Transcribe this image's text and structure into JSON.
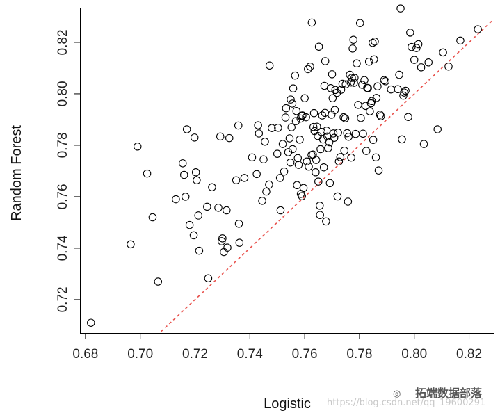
{
  "chart_data": {
    "type": "scatter",
    "xlabel": "Logistic",
    "ylabel": "Random Forest",
    "xlim": [
      0.678,
      0.829
    ],
    "ylim": [
      0.707,
      0.8335
    ],
    "xticks": [
      "0.68",
      "0.70",
      "0.72",
      "0.74",
      "0.76",
      "0.78",
      "0.80",
      "0.82"
    ],
    "yticks": [
      "0.72",
      "0.74",
      "0.76",
      "0.78",
      "0.80",
      "0.82"
    ],
    "reference_line": {
      "slope": 1,
      "intercept": 0,
      "style": "dashed",
      "color": "#e8504b"
    },
    "marker_color": "#000000",
    "points": [
      [
        0.682,
        0.711
      ],
      [
        0.6965,
        0.7415
      ],
      [
        0.699,
        0.7795
      ],
      [
        0.7025,
        0.769
      ],
      [
        0.7045,
        0.752
      ],
      [
        0.7065,
        0.727
      ],
      [
        0.713,
        0.759
      ],
      [
        0.7155,
        0.773
      ],
      [
        0.716,
        0.7685
      ],
      [
        0.7165,
        0.76
      ],
      [
        0.717,
        0.7862
      ],
      [
        0.718,
        0.749
      ],
      [
        0.7195,
        0.745
      ],
      [
        0.7198,
        0.783
      ],
      [
        0.7203,
        0.7695
      ],
      [
        0.7206,
        0.7664
      ],
      [
        0.7212,
        0.7527
      ],
      [
        0.7215,
        0.739
      ],
      [
        0.7244,
        0.7561
      ],
      [
        0.7248,
        0.7283
      ],
      [
        0.7262,
        0.7637
      ],
      [
        0.7285,
        0.7557
      ],
      [
        0.7292,
        0.7834
      ],
      [
        0.7297,
        0.7427
      ],
      [
        0.73,
        0.7438
      ],
      [
        0.7305,
        0.7385
      ],
      [
        0.7315,
        0.7547
      ],
      [
        0.7318,
        0.7402
      ],
      [
        0.7325,
        0.7828
      ],
      [
        0.735,
        0.7664
      ],
      [
        0.7358,
        0.7877
      ],
      [
        0.736,
        0.7495
      ],
      [
        0.7362,
        0.7421
      ],
      [
        0.738,
        0.7673
      ],
      [
        0.7408,
        0.7753
      ],
      [
        0.7425,
        0.7688
      ],
      [
        0.743,
        0.7878
      ],
      [
        0.7433,
        0.7846
      ],
      [
        0.7445,
        0.7584
      ],
      [
        0.745,
        0.7745
      ],
      [
        0.7455,
        0.7814
      ],
      [
        0.746,
        0.762
      ],
      [
        0.747,
        0.7647
      ],
      [
        0.748,
        0.7867
      ],
      [
        0.7472,
        0.811
      ],
      [
        0.7503,
        0.7868
      ],
      [
        0.75,
        0.7767
      ],
      [
        0.751,
        0.7673
      ],
      [
        0.7512,
        0.7547
      ],
      [
        0.752,
        0.7805
      ],
      [
        0.7525,
        0.7698
      ],
      [
        0.753,
        0.7908
      ],
      [
        0.7532,
        0.7944
      ],
      [
        0.754,
        0.7773
      ],
      [
        0.7545,
        0.7827
      ],
      [
        0.7548,
        0.7733
      ],
      [
        0.7549,
        0.7978
      ],
      [
        0.7552,
        0.787
      ],
      [
        0.7555,
        0.7962
      ],
      [
        0.7556,
        0.7785
      ],
      [
        0.7558,
        0.8021
      ],
      [
        0.7565,
        0.8071
      ],
      [
        0.7568,
        0.7894
      ],
      [
        0.757,
        0.7933
      ],
      [
        0.7572,
        0.7645
      ],
      [
        0.7575,
        0.775
      ],
      [
        0.7578,
        0.7724
      ],
      [
        0.7582,
        0.7822
      ],
      [
        0.7585,
        0.7904
      ],
      [
        0.7586,
        0.7611
      ],
      [
        0.7588,
        0.7915
      ],
      [
        0.759,
        0.7602
      ],
      [
        0.7592,
        0.7916
      ],
      [
        0.7596,
        0.7634
      ],
      [
        0.76,
        0.7983
      ],
      [
        0.7605,
        0.7909
      ],
      [
        0.7608,
        0.7737
      ],
      [
        0.7612,
        0.8096
      ],
      [
        0.7615,
        0.7717
      ],
      [
        0.762,
        0.8106
      ],
      [
        0.7625,
        0.7762
      ],
      [
        0.7626,
        0.8277
      ],
      [
        0.763,
        0.7764
      ],
      [
        0.7632,
        0.7871
      ],
      [
        0.7634,
        0.7925
      ],
      [
        0.7636,
        0.7855
      ],
      [
        0.764,
        0.7695
      ],
      [
        0.7642,
        0.7743
      ],
      [
        0.7645,
        0.7872
      ],
      [
        0.7648,
        0.7836
      ],
      [
        0.765,
        0.7659
      ],
      [
        0.7652,
        0.8183
      ],
      [
        0.7655,
        0.7565
      ],
      [
        0.7656,
        0.7529
      ],
      [
        0.7658,
        0.7785
      ],
      [
        0.7661,
        0.7852
      ],
      [
        0.7664,
        0.7916
      ],
      [
        0.7667,
        0.7823
      ],
      [
        0.767,
        0.7714
      ],
      [
        0.7672,
        0.8031
      ],
      [
        0.7674,
        0.7926
      ],
      [
        0.7675,
        0.8127
      ],
      [
        0.7678,
        0.7504
      ],
      [
        0.768,
        0.7857
      ],
      [
        0.7683,
        0.7834
      ],
      [
        0.7686,
        0.7789
      ],
      [
        0.769,
        0.7812
      ],
      [
        0.7692,
        0.7653
      ],
      [
        0.7695,
        0.8022
      ],
      [
        0.7698,
        0.7919
      ],
      [
        0.77,
        0.8076
      ],
      [
        0.7702,
        0.7983
      ],
      [
        0.7705,
        0.7846
      ],
      [
        0.7708,
        0.7829
      ],
      [
        0.771,
        0.7937
      ],
      [
        0.7712,
        0.8015
      ],
      [
        0.7718,
        0.8004
      ],
      [
        0.772,
        0.7601
      ],
      [
        0.7722,
        0.7849
      ],
      [
        0.7725,
        0.7737
      ],
      [
        0.773,
        0.7754
      ],
      [
        0.7733,
        0.8016
      ],
      [
        0.7738,
        0.8039
      ],
      [
        0.7742,
        0.7909
      ],
      [
        0.7745,
        0.7779
      ],
      [
        0.7748,
        0.7905
      ],
      [
        0.775,
        0.8037
      ],
      [
        0.7755,
        0.7847
      ],
      [
        0.7758,
        0.7581
      ],
      [
        0.776,
        0.7833
      ],
      [
        0.7765,
        0.8074
      ],
      [
        0.7768,
        0.8044
      ],
      [
        0.777,
        0.7752
      ],
      [
        0.7772,
        0.8062
      ],
      [
        0.7775,
        0.8176
      ],
      [
        0.7778,
        0.821
      ],
      [
        0.778,
        0.8043
      ],
      [
        0.7782,
        0.8062
      ],
      [
        0.7786,
        0.7844
      ],
      [
        0.779,
        0.8118
      ],
      [
        0.7795,
        0.7957
      ],
      [
        0.7802,
        0.8275
      ],
      [
        0.7805,
        0.7906
      ],
      [
        0.781,
        0.8035
      ],
      [
        0.7813,
        0.7845
      ],
      [
        0.7818,
        0.8053
      ],
      [
        0.7822,
        0.7953
      ],
      [
        0.7825,
        0.7778
      ],
      [
        0.7828,
        0.8023
      ],
      [
        0.7831,
        0.8022
      ],
      [
        0.7835,
        0.8125
      ],
      [
        0.7838,
        0.7932
      ],
      [
        0.7842,
        0.7963
      ],
      [
        0.7845,
        0.7972
      ],
      [
        0.7848,
        0.8198
      ],
      [
        0.785,
        0.7821
      ],
      [
        0.7853,
        0.8134
      ],
      [
        0.7856,
        0.8203
      ],
      [
        0.786,
        0.7753
      ],
      [
        0.7862,
        0.7984
      ],
      [
        0.7866,
        0.8029
      ],
      [
        0.787,
        0.7702
      ],
      [
        0.7875,
        0.7919
      ],
      [
        0.7878,
        0.7913
      ],
      [
        0.789,
        0.8053
      ],
      [
        0.7895,
        0.8049
      ],
      [
        0.7915,
        0.8017
      ],
      [
        0.794,
        0.8018
      ],
      [
        0.7945,
        0.8074
      ],
      [
        0.795,
        0.8332
      ],
      [
        0.7955,
        0.7823
      ],
      [
        0.796,
        0.7993
      ],
      [
        0.7963,
        0.8005
      ],
      [
        0.7968,
        0.8012
      ],
      [
        0.7978,
        0.791
      ],
      [
        0.7985,
        0.8238
      ],
      [
        0.799,
        0.8182
      ],
      [
        0.8,
        0.8132
      ],
      [
        0.8008,
        0.8178
      ],
      [
        0.8015,
        0.8193
      ],
      [
        0.8025,
        0.8103
      ],
      [
        0.8035,
        0.7805
      ],
      [
        0.8052,
        0.8122
      ],
      [
        0.8085,
        0.7862
      ],
      [
        0.8105,
        0.8161
      ],
      [
        0.8125,
        0.8106
      ],
      [
        0.8168,
        0.8207
      ],
      [
        0.8232,
        0.8251
      ]
    ]
  },
  "watermark": {
    "logo_text": "拓端数据部落",
    "url_text": "https://blog.csdn.net/qq_19600291"
  }
}
